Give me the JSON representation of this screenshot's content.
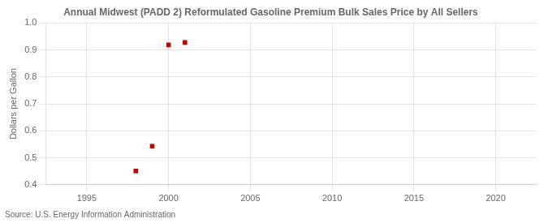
{
  "chart_data": {
    "type": "scatter",
    "title": "Annual Midwest (PADD 2) Reformulated Gasoline Premium Bulk Sales Price by All Sellers",
    "ylabel": "Dollars per Gallon",
    "source": "Source: U.S. Energy Information Administration",
    "x": [
      1998,
      1999,
      2000,
      2001
    ],
    "values": [
      0.451,
      0.543,
      0.919,
      0.928
    ],
    "color": "#cc0000",
    "marker": "square",
    "xlim": [
      1992.5,
      2022.5
    ],
    "ylim": [
      0.4,
      1.0
    ],
    "xticks": [
      1995,
      2000,
      2005,
      2010,
      2015,
      2020
    ],
    "yticks": [
      0.4,
      0.5,
      0.6,
      0.7,
      0.8,
      0.9,
      {
        "value": 1.0,
        "label": "1.0"
      }
    ],
    "grid": true
  }
}
